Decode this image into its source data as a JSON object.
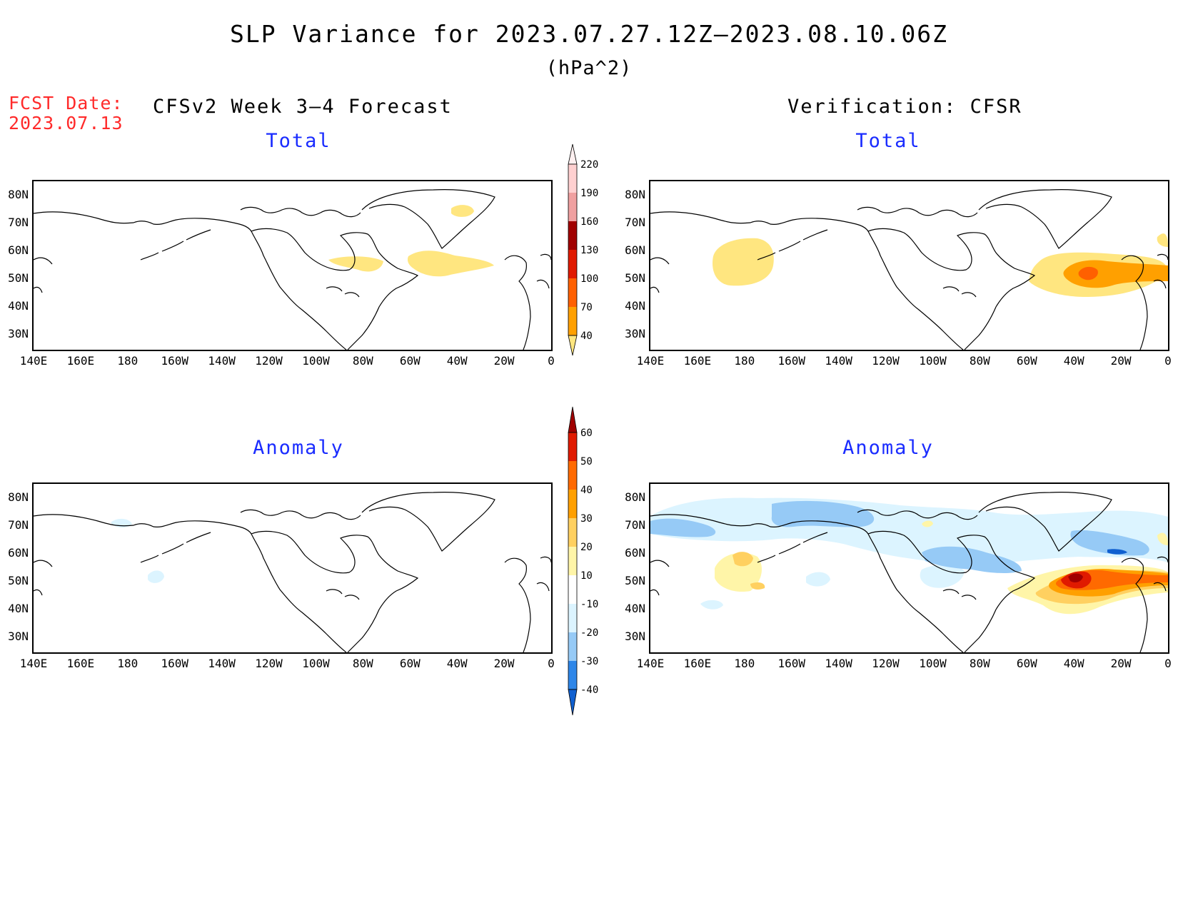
{
  "title": "SLP Variance for 2023.07.27.12Z–2023.08.10.06Z",
  "units": "(hPa^2)",
  "fcst_date": {
    "label": "FCST Date:",
    "value": "2023.07.13"
  },
  "left_header": "CFSv2 Week 3–4 Forecast",
  "right_header": "Verification: CFSR",
  "panels": {
    "forecast_total": {
      "subtitle": "Total"
    },
    "verification_total": {
      "subtitle": "Total"
    },
    "forecast_anomaly": {
      "subtitle": "Anomaly"
    },
    "verification_anomaly": {
      "subtitle": "Anomaly"
    }
  },
  "lat_ticks": [
    "80N",
    "70N",
    "60N",
    "50N",
    "40N",
    "30N"
  ],
  "lon_ticks": [
    "140E",
    "160E",
    "180",
    "160W",
    "140W",
    "120W",
    "100W",
    "80W",
    "60W",
    "40W",
    "20W",
    "0"
  ],
  "colorbar_total": {
    "levels": [
      "40",
      "70",
      "100",
      "130",
      "160",
      "190",
      "220"
    ],
    "colors": [
      "#ffe680",
      "#ffa000",
      "#ff6000",
      "#e01a00",
      "#a00000",
      "#f0a0a0",
      "#ffd0d0",
      "#fff0f0"
    ]
  },
  "colorbar_anomaly": {
    "levels": [
      "-40",
      "-30",
      "-20",
      "-10",
      "10",
      "20",
      "30",
      "40",
      "50",
      "60"
    ],
    "colors": [
      "#1060d0",
      "#2e86e8",
      "#96caf6",
      "#dcf4ff",
      "#ffffff",
      "#fff5a8",
      "#ffd060",
      "#ffa000",
      "#ff6a00",
      "#e01a00",
      "#a00000"
    ]
  },
  "chart_data": {
    "type": "heatmap",
    "projection": "lat-lon, 140E–0, 25N–85N",
    "fields": [
      {
        "panel": "forecast_total",
        "notable_regions": [
          {
            "near": "70N 40W",
            "level_range": "40-70"
          },
          {
            "near": "55N 85W (Hudson Bay)",
            "level_range": "40-70"
          },
          {
            "near": "55N 45W",
            "level_range": "40-70"
          }
        ]
      },
      {
        "panel": "verification_total",
        "notable_regions": [
          {
            "near": "55N 175E",
            "level_range": "40-70"
          },
          {
            "near": "52N 35W",
            "level_range": "70-130"
          },
          {
            "near": "60N 0",
            "level_range": "40-70"
          }
        ]
      },
      {
        "panel": "forecast_anomaly",
        "notable_regions": [
          {
            "near": "72N 178E",
            "level_range": "-20 to -10"
          },
          {
            "near": "50N 168W",
            "level_range": "-20 to -10"
          }
        ]
      },
      {
        "panel": "verification_anomaly",
        "notable_regions": [
          {
            "near": "70N 140W",
            "level_range": "-20 to -10"
          },
          {
            "near": "58N 75W",
            "level_range": "-20 to -10"
          },
          {
            "near": "50N 30W",
            "level_range": "40-60"
          },
          {
            "near": "55N 178E",
            "level_range": "10-30"
          }
        ]
      }
    ]
  }
}
